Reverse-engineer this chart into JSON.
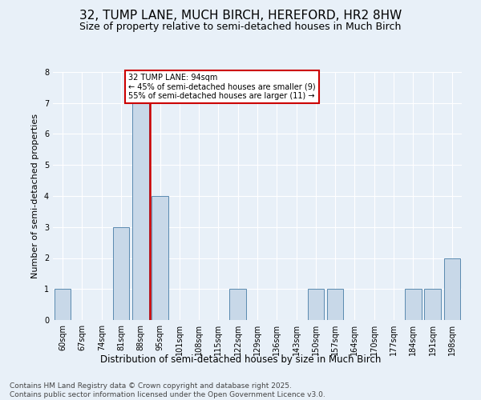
{
  "title": "32, TUMP LANE, MUCH BIRCH, HEREFORD, HR2 8HW",
  "subtitle": "Size of property relative to semi-detached houses in Much Birch",
  "xlabel": "Distribution of semi-detached houses by size in Much Birch",
  "ylabel": "Number of semi-detached properties",
  "footer1": "Contains HM Land Registry data © Crown copyright and database right 2025.",
  "footer2": "Contains public sector information licensed under the Open Government Licence v3.0.",
  "categories": [
    "60sqm",
    "67sqm",
    "74sqm",
    "81sqm",
    "88sqm",
    "95sqm",
    "101sqm",
    "108sqm",
    "115sqm",
    "122sqm",
    "129sqm",
    "136sqm",
    "143sqm",
    "150sqm",
    "157sqm",
    "164sqm",
    "170sqm",
    "177sqm",
    "184sqm",
    "191sqm",
    "198sqm"
  ],
  "values": [
    1,
    0,
    0,
    3,
    7,
    4,
    0,
    0,
    0,
    1,
    0,
    0,
    0,
    1,
    1,
    0,
    0,
    0,
    1,
    1,
    2
  ],
  "bar_color": "#c8d8e8",
  "bar_edge_color": "#5a8ab0",
  "vline_index": 4.5,
  "vline_color": "#cc0000",
  "annotation_text": "32 TUMP LANE: 94sqm\n← 45% of semi-detached houses are smaller (9)\n55% of semi-detached houses are larger (11) →",
  "annotation_box_color": "#ffffff",
  "annotation_box_edge": "#cc0000",
  "ylim": [
    0,
    8
  ],
  "yticks": [
    0,
    1,
    2,
    3,
    4,
    5,
    6,
    7,
    8
  ],
  "background_color": "#e8f0f8",
  "plot_background": "#e8f0f8",
  "grid_color": "#ffffff",
  "title_fontsize": 11,
  "subtitle_fontsize": 9,
  "tick_fontsize": 7,
  "ylabel_fontsize": 8,
  "xlabel_fontsize": 8.5,
  "footer_fontsize": 6.5,
  "annotation_fontsize": 7
}
